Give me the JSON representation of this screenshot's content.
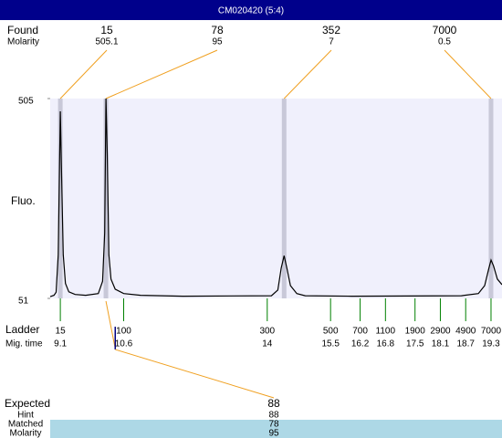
{
  "chart_data": {
    "type": "electropherogram",
    "title": "CM020420 (5:4)",
    "y_label": "Fluo.",
    "ylim": [
      51,
      505
    ],
    "yticks": [
      51,
      505
    ],
    "xlim": [
      8.86,
      19.56
    ],
    "trace": {
      "color": "#000000",
      "x": [
        8.86,
        8.95,
        9.0,
        9.05,
        9.08,
        9.1,
        9.13,
        9.17,
        9.22,
        9.3,
        9.45,
        9.7,
        10.0,
        10.1,
        10.15,
        10.18,
        10.21,
        10.25,
        10.3,
        10.4,
        10.6,
        11.0,
        12.0,
        14.1,
        14.25,
        14.33,
        14.4,
        14.47,
        14.55,
        14.7,
        14.9,
        16.0,
        18.6,
        19.0,
        19.15,
        19.25,
        19.3,
        19.36,
        19.45,
        19.56
      ],
      "values": [
        55,
        58,
        65,
        150,
        350,
        476,
        330,
        150,
        85,
        66,
        60,
        58,
        62,
        90,
        200,
        505,
        380,
        150,
        95,
        72,
        62,
        58,
        56,
        57,
        70,
        120,
        148,
        118,
        80,
        62,
        57,
        56,
        57,
        62,
        80,
        120,
        138,
        125,
        95,
        82
      ]
    },
    "found": {
      "label": "Found",
      "sublabel": "Molarity",
      "sizes": [
        15,
        78,
        352,
        7000
      ],
      "molarity": [
        505.1,
        95,
        7,
        0.5
      ],
      "x": [
        9.1,
        10.18,
        14.4,
        19.3
      ]
    },
    "ladder": {
      "label": "Ladder",
      "sublabel": "Mig. time",
      "sizes": [
        15,
        100,
        300,
        500,
        700,
        1100,
        1900,
        2900,
        4900,
        7000
      ],
      "times": [
        9.1,
        10.6,
        14,
        15.5,
        16.2,
        16.8,
        17.5,
        18.1,
        18.7,
        19.3
      ]
    },
    "expected": {
      "label": "Expected",
      "value": 88,
      "x": 10.4,
      "rows": [
        {
          "label": "Hint",
          "value": 88
        },
        {
          "label": "Matched",
          "value": 78
        },
        {
          "label": "Molarity",
          "value": 95
        }
      ]
    }
  }
}
